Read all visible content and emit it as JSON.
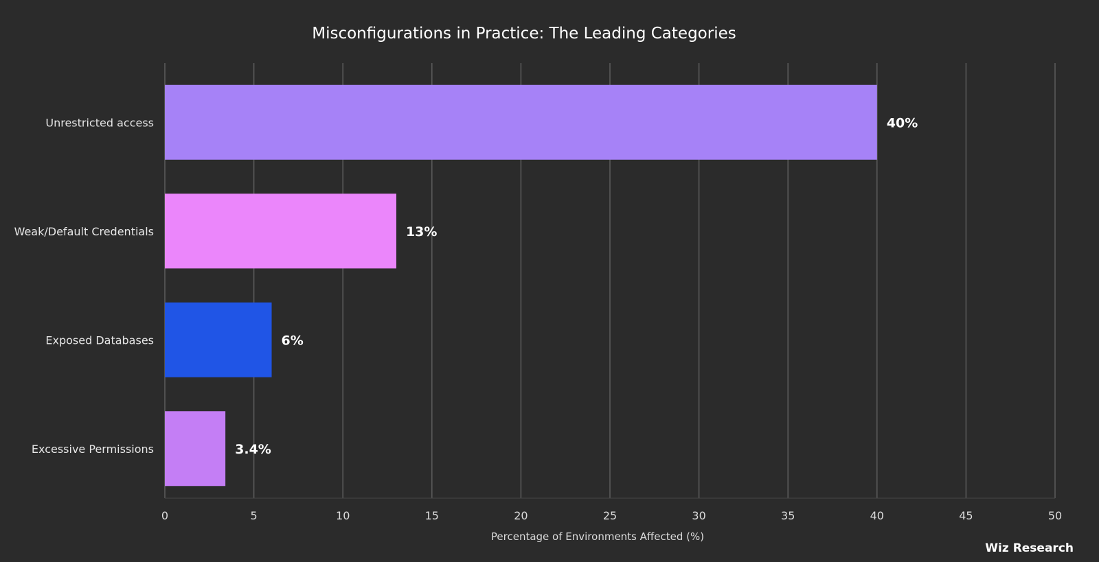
{
  "chart_data": {
    "type": "bar",
    "orientation": "horizontal",
    "title": "Misconfigurations in Practice: The Leading Categories",
    "xlabel": "Percentage of Environments Affected (%)",
    "ylabel": "",
    "xlim": [
      0,
      50
    ],
    "x_ticks": [
      0,
      5,
      10,
      15,
      20,
      25,
      30,
      35,
      40,
      45,
      50
    ],
    "grid": "vertical",
    "categories": [
      "Unrestricted access",
      "Weak/Default Credentials",
      "Exposed Databases",
      "Excessive Permissions"
    ],
    "values": [
      40,
      13,
      6,
      3.4
    ],
    "value_labels": [
      "40%",
      "13%",
      "6%",
      "3.4%"
    ],
    "bar_colors": [
      "#a682f7",
      "#eb86fb",
      "#2055e6",
      "#c47ef5"
    ]
  },
  "branding": {
    "credit": "Wiz Research"
  }
}
